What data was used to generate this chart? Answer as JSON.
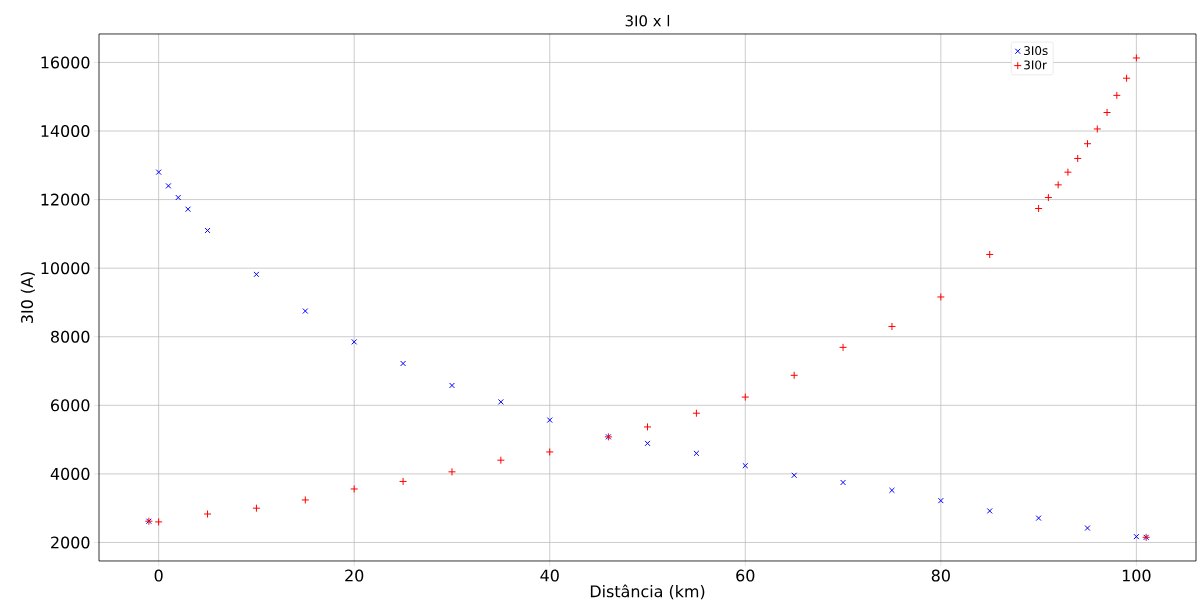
{
  "chart_data": {
    "type": "scatter",
    "title": "3I0 x l",
    "xlabel": "Distância (km)",
    "ylabel": "3I0 (A)",
    "xlim": [
      -6.1,
      106.1
    ],
    "ylim": [
      1460,
      16830
    ],
    "xticks": [
      0,
      20,
      40,
      60,
      80,
      100
    ],
    "yticks": [
      2000,
      4000,
      6000,
      8000,
      10000,
      12000,
      14000,
      16000
    ],
    "grid": true,
    "legend": "top right",
    "series": [
      {
        "name": "3I0s",
        "color": "#0000ff",
        "marker": "cross",
        "x": [
          -1,
          0,
          1,
          2,
          3,
          5,
          10,
          15,
          20,
          25,
          30,
          35,
          40,
          46,
          50,
          55,
          60,
          65,
          70,
          75,
          80,
          85,
          90,
          95,
          100,
          101
        ],
        "values": [
          2620,
          12800,
          12400,
          12060,
          11720,
          11100,
          9820,
          8750,
          7850,
          7220,
          6580,
          6100,
          5570,
          5080,
          4890,
          4600,
          4240,
          3960,
          3750,
          3520,
          3220,
          2920,
          2710,
          2420,
          2170,
          2150
        ]
      },
      {
        "name": "3I0r",
        "color": "#ff0000",
        "marker": "plus",
        "x": [
          -1,
          0,
          5,
          10,
          15,
          20,
          25,
          30,
          35,
          40,
          46,
          50,
          55,
          60,
          65,
          70,
          75,
          80,
          85,
          90,
          91,
          92,
          93,
          94,
          95,
          96,
          97,
          98,
          99,
          100,
          101
        ],
        "values": [
          2620,
          2600,
          2830,
          3000,
          3240,
          3560,
          3780,
          4060,
          4400,
          4640,
          5080,
          5370,
          5770,
          6240,
          6875,
          7690,
          8300,
          9160,
          10400,
          11740,
          12060,
          12430,
          12800,
          13200,
          13630,
          14060,
          14540,
          15040,
          15540,
          16130,
          2150
        ]
      }
    ]
  }
}
